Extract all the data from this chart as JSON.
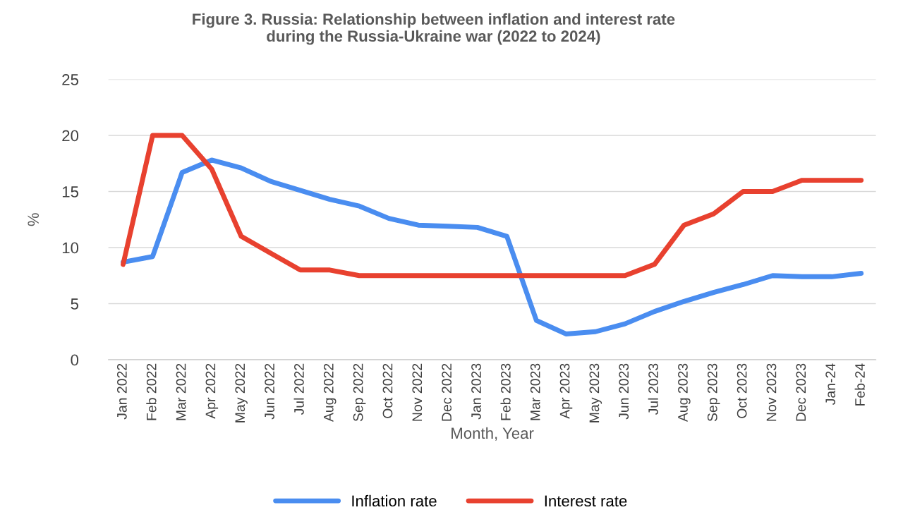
{
  "chart_data": {
    "type": "line",
    "title": "Figure 3. Russia: Relationship between inflation and interest rate\nduring the Russia-Ukraine war (2022 to 2024)",
    "xlabel": "Month, Year",
    "ylabel": "%",
    "categories": [
      "Jan 2022",
      "Feb 2022",
      "Mar 2022",
      "Apr 2022",
      "May 2022",
      "Jun 2022",
      "Jul 2022",
      "Aug 2022",
      "Sep 2022",
      "Oct 2022",
      "Nov 2022",
      "Dec 2022",
      "Jan 2023",
      "Feb 2023",
      "Mar 2023",
      "Apr 2023",
      "May 2023",
      "Jun 2023",
      "Jul 2023",
      "Aug 2023",
      "Sep 2023",
      "Oct 2023",
      "Nov 2023",
      "Dec 2023",
      "Jan-24",
      "Feb-24"
    ],
    "series": [
      {
        "name": "Inflation rate",
        "color": "#4a8df0",
        "values": [
          8.7,
          9.2,
          16.7,
          17.8,
          17.1,
          15.9,
          15.1,
          14.3,
          13.7,
          12.6,
          12.0,
          11.9,
          11.8,
          11.0,
          3.5,
          2.3,
          2.5,
          3.2,
          4.3,
          5.2,
          6.0,
          6.7,
          7.5,
          7.4,
          7.4,
          7.7
        ]
      },
      {
        "name": "Interest rate",
        "color": "#e8412f",
        "values": [
          8.5,
          20,
          20,
          17,
          11,
          9.5,
          8,
          8,
          7.5,
          7.5,
          7.5,
          7.5,
          7.5,
          7.5,
          7.5,
          7.5,
          7.5,
          7.5,
          8.5,
          12,
          13,
          15,
          15,
          16,
          16,
          16
        ]
      }
    ],
    "ylim": [
      0,
      25
    ],
    "yticks": [
      0,
      5,
      10,
      15,
      20,
      25
    ],
    "grid": "y",
    "legend": "bottom",
    "marker": "none",
    "line_style": "solid"
  }
}
